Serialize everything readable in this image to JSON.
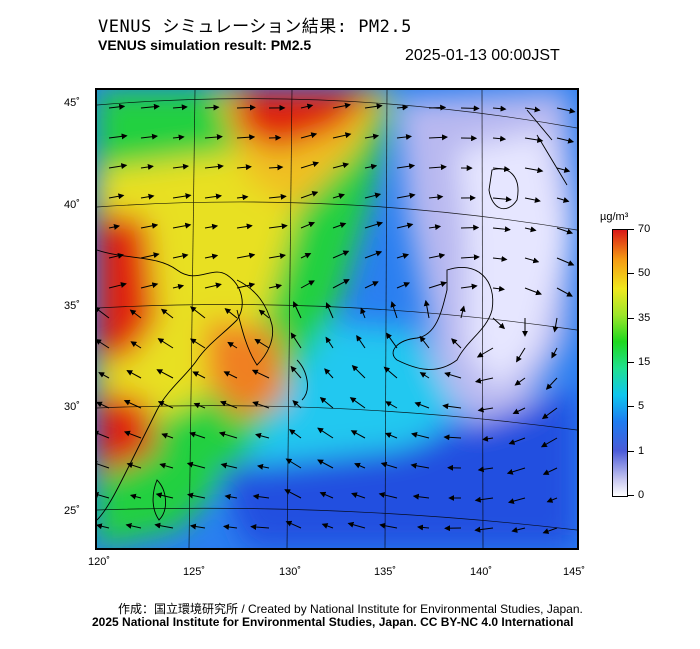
{
  "header": {
    "title_jp": "VENUS シミュレーション結果: PM2.5",
    "title_en": "VENUS simulation result: PM2.5",
    "timestamp": "2025-01-13 00:00JST"
  },
  "map": {
    "lon_ticks": [
      "120˚",
      "125˚",
      "130˚",
      "135˚",
      "140˚",
      "145˚"
    ],
    "lat_ticks": [
      "45˚",
      "40˚",
      "35˚",
      "30˚",
      "25˚"
    ],
    "field": "PM2.5 concentration with wind vectors"
  },
  "colorbar": {
    "unit": "µg/m³",
    "labels": [
      "70",
      "50",
      "35",
      "15",
      "5",
      "1",
      "0"
    ],
    "colors": [
      "#ffffff",
      "#4b5bd8",
      "#0fc6ee",
      "#1ed81e",
      "#f0e81e",
      "#f59a14",
      "#d81818"
    ]
  },
  "footer": {
    "credit": "作成：国立環境研究所 / Created by National Institute for Environmental Studies, Japan.",
    "copyright": "2025 National Institute for Environmental Studies, Japan. CC BY-NC 4.0 International"
  }
}
